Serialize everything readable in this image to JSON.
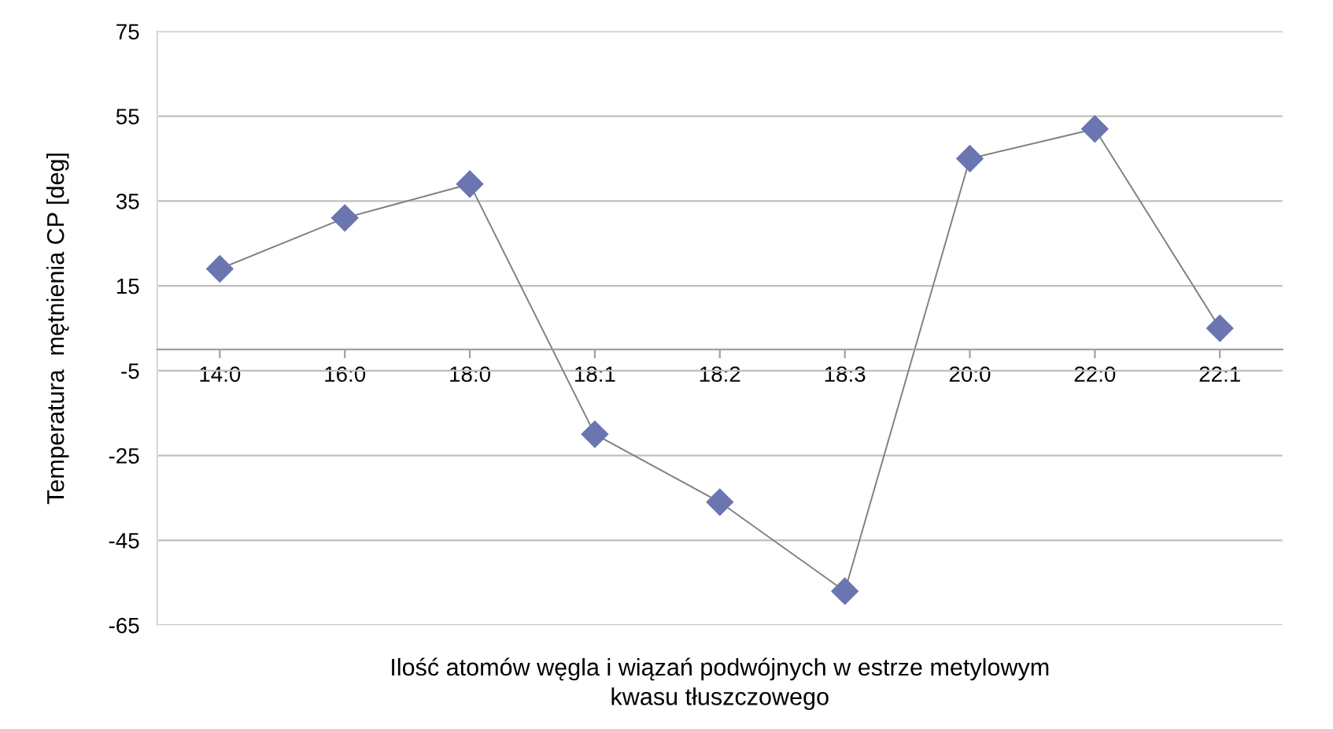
{
  "chart_data": {
    "type": "line",
    "xlabel": "Ilość atomów węgla i wiązań podwójnych w estrze metylowym\nkwasu tłuszczowego",
    "ylabel": "Temperatura  mętnienia CP [deg]",
    "categories": [
      "14:0",
      "16:0",
      "18:0",
      "18:1",
      "18:2",
      "18:3",
      "20:0",
      "22:0",
      "22:1"
    ],
    "series": [
      {
        "color": "#6b75b0",
        "values": [
          19,
          31,
          39,
          -20,
          -36,
          -57,
          45,
          52,
          5
        ]
      }
    ],
    "ylim": [
      -65,
      75
    ],
    "yticks": [
      -65,
      -45,
      -25,
      -5,
      15,
      35,
      55,
      75
    ],
    "grid": "y",
    "marker": "diamond",
    "legend": false
  }
}
